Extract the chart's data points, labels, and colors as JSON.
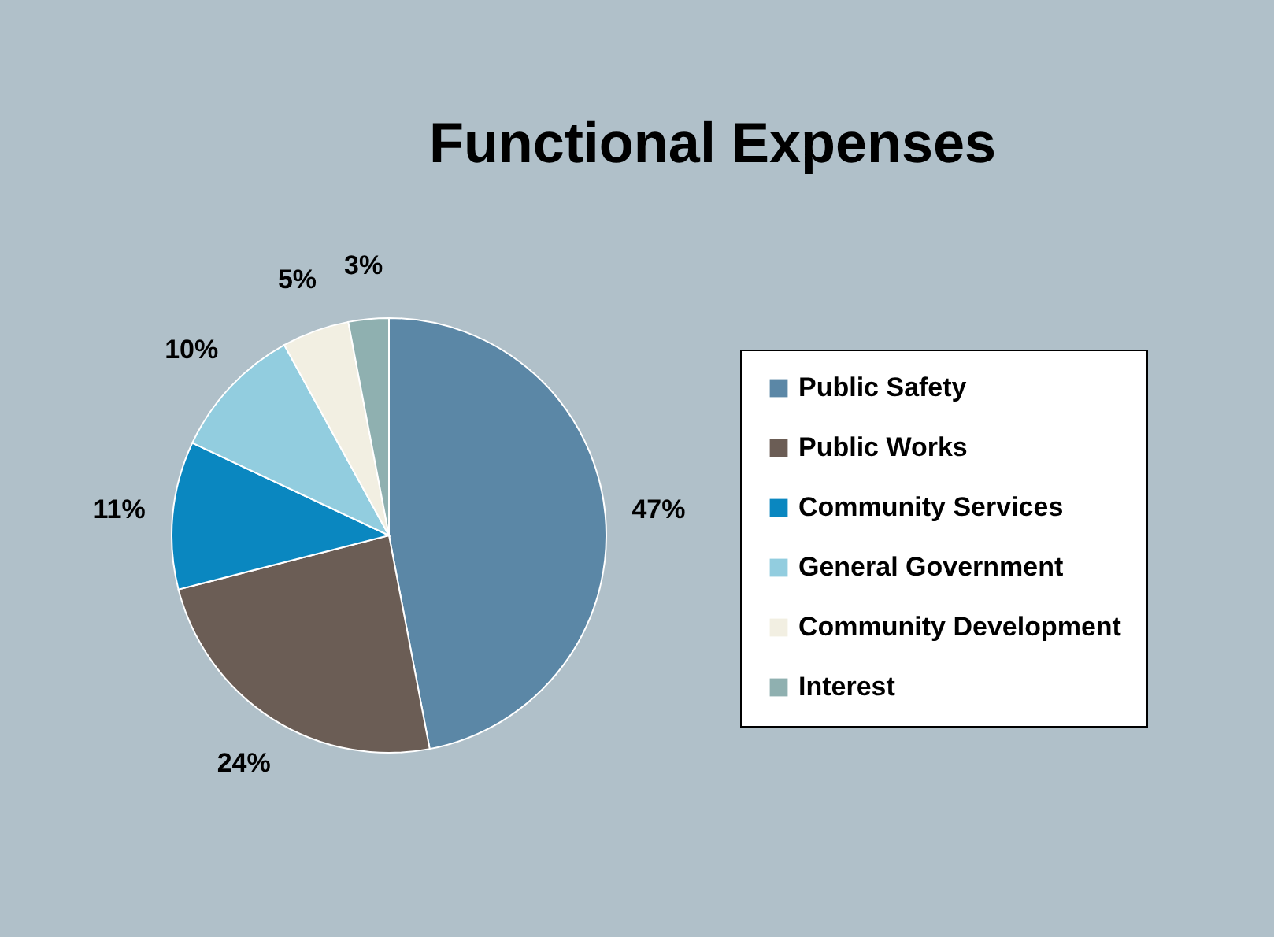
{
  "chart_data": {
    "type": "pie",
    "title": "Functional Expenses",
    "categories": [
      "Public Safety",
      "Public Works",
      "Community Services",
      "General Government",
      "Community Development",
      "Interest"
    ],
    "values": [
      47,
      24,
      11,
      10,
      5,
      3
    ],
    "value_labels": [
      "47%",
      "24%",
      "11%",
      "10%",
      "5%",
      "3%"
    ],
    "colors": [
      "#5b87a6",
      "#6b5d55",
      "#0a87c0",
      "#92cddf",
      "#f2efe2",
      "#8fb0b0"
    ],
    "legend": "right"
  }
}
